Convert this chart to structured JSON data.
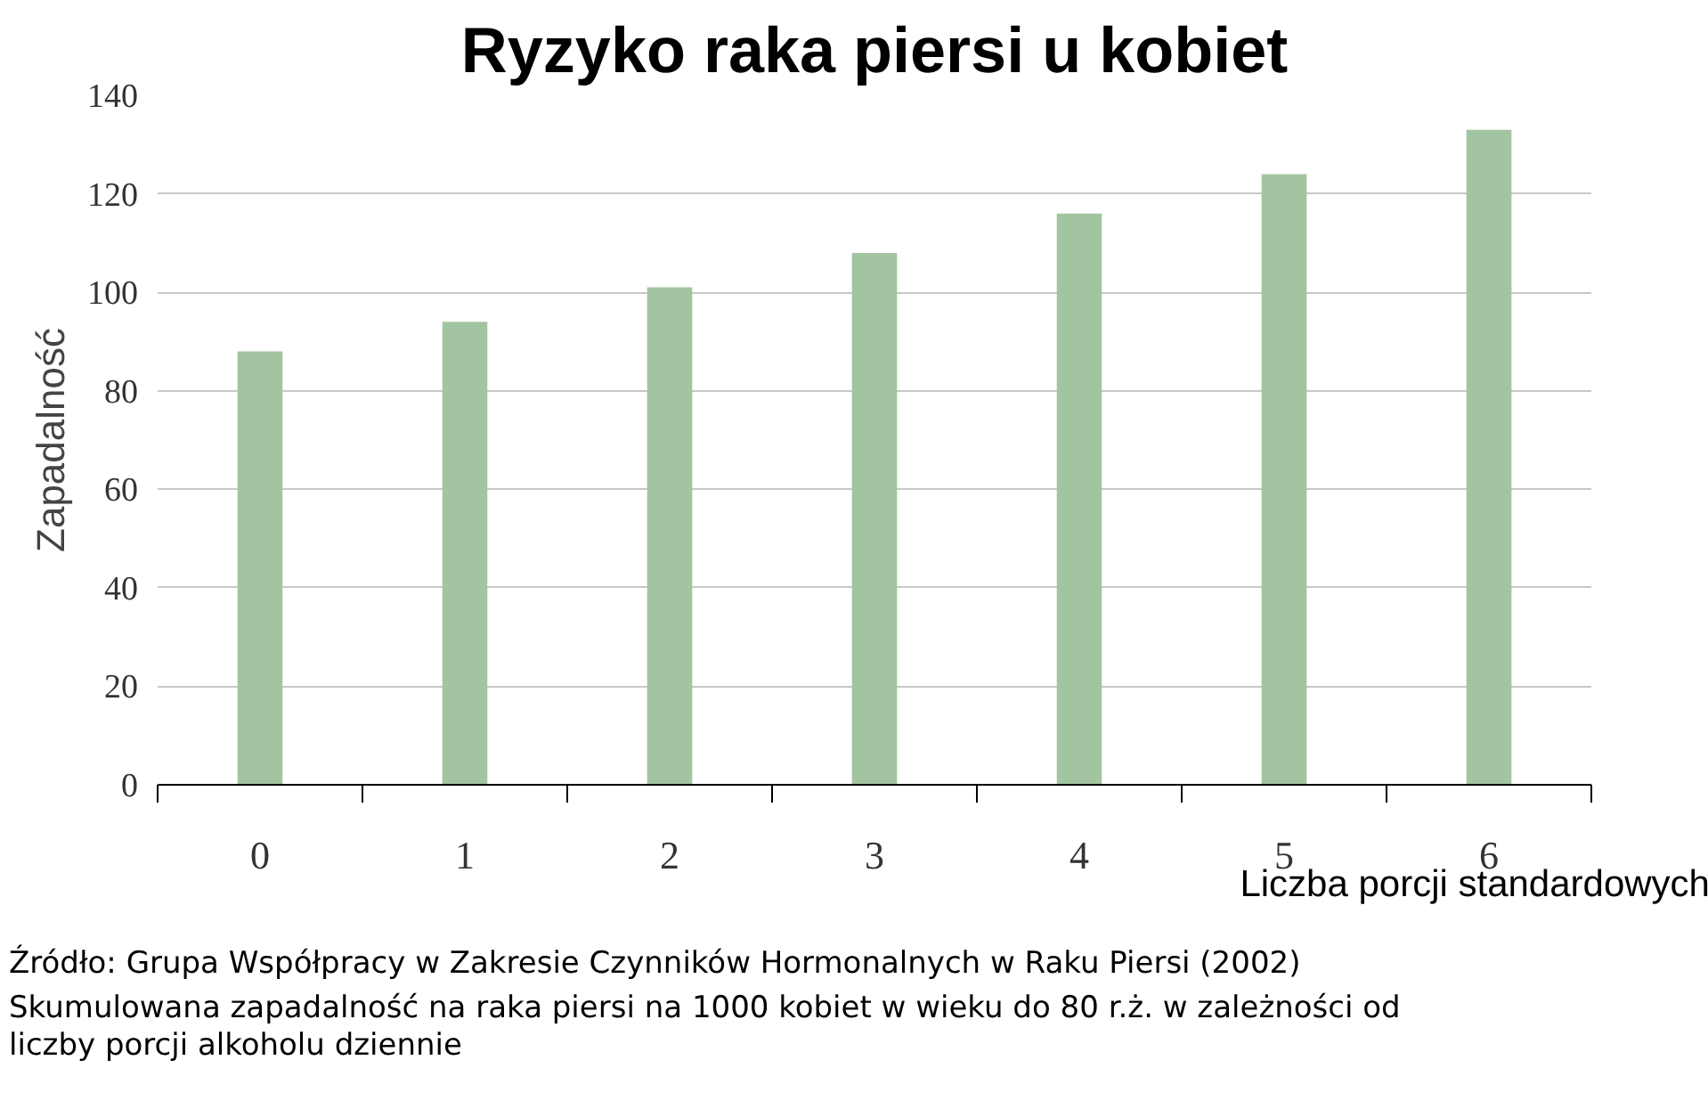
{
  "chart_data": {
    "type": "bar",
    "title": "Ryzyko raka piersi u kobiet",
    "ylabel": "Zapadalność",
    "xlabel": "Liczba porcji standardowych",
    "categories": [
      "0",
      "1",
      "2",
      "3",
      "4",
      "5",
      "6"
    ],
    "values": [
      88,
      94,
      101,
      108,
      116,
      124,
      133
    ],
    "color": "#a3c4a0",
    "ylim": [
      0,
      140
    ],
    "yticks": [
      0,
      20,
      40,
      60,
      80,
      100,
      120,
      140
    ],
    "grid": "y",
    "annotations": [
      "Źródło: Grupa Współpracy w Zakresie Czynników Hormonalnych w Raku Piersi (2002)",
      "Skumulowana zapadalność na raka piersi na 1000 kobiet w wieku do 80 r.ż. w zależności od liczby porcji alkoholu dziennie"
    ]
  }
}
